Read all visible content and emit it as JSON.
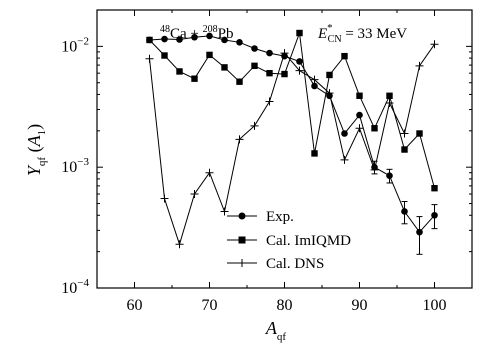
{
  "chart_data": {
    "type": "line",
    "title": "",
    "annotations": {
      "reaction": {
        "m1": "48",
        "e1": "Ca",
        "op": " + ",
        "m2": "208",
        "e2": "Pb"
      },
      "energy": {
        "sym": "E",
        "sup": "*",
        "sub": "CN",
        "rest": " = 33 MeV"
      }
    },
    "xlabel": {
      "main": "A",
      "sub": "qf"
    },
    "ylabel": {
      "main": "Y",
      "sub": "qf",
      "paren_open": " (",
      "var": "A",
      "var_sub": "1",
      "paren_close": ")"
    },
    "xlim": [
      55,
      105
    ],
    "ylim": [
      0.0001,
      0.02
    ],
    "yscale": "log",
    "grid": false,
    "legend_position": "bottom-left",
    "x_ticks": [
      60,
      70,
      80,
      90,
      100
    ],
    "y_ticks": [
      {
        "value": 0.01,
        "base": "10",
        "exp": "−2"
      },
      {
        "value": 0.001,
        "base": "10",
        "exp": "−3"
      },
      {
        "value": 0.0001,
        "base": "10",
        "exp": "−4"
      }
    ],
    "series": [
      {
        "name": "Exp.",
        "marker": "circle",
        "x": [
          62,
          64,
          66,
          68,
          70,
          72,
          74,
          76,
          78,
          80,
          82,
          84,
          86,
          88,
          90,
          92,
          94,
          96,
          98,
          100
        ],
        "y": [
          0.0113,
          0.0115,
          0.0114,
          0.0119,
          0.0122,
          0.0113,
          0.0108,
          0.0096,
          0.0088,
          0.0083,
          0.0075,
          0.0047,
          0.0039,
          0.0019,
          0.0027,
          0.001,
          0.00085,
          0.00043,
          0.00029,
          0.0004
        ],
        "yerr": [
          0,
          0,
          0,
          0,
          0,
          0,
          0,
          0,
          0,
          0,
          0,
          0,
          0,
          0,
          0,
          0.00012,
          0.00011,
          9e-05,
          0.0001,
          9e-05
        ]
      },
      {
        "name": "Cal. ImIQMD",
        "marker": "square",
        "x": [
          62,
          64,
          66,
          68,
          70,
          72,
          74,
          76,
          78,
          80,
          82,
          84,
          86,
          88,
          90,
          92,
          94,
          96,
          98,
          100
        ],
        "y": [
          0.0113,
          0.0084,
          0.0062,
          0.0054,
          0.0085,
          0.0067,
          0.0051,
          0.0069,
          0.006,
          0.0059,
          0.0129,
          0.0013,
          0.0058,
          0.0083,
          0.0039,
          0.0021,
          0.0039,
          0.0014,
          0.0019,
          0.00067
        ]
      },
      {
        "name": "Cal. DNS",
        "marker": "plus",
        "x": [
          62,
          64,
          66,
          68,
          70,
          72,
          74,
          76,
          78,
          80,
          82,
          84,
          86,
          88,
          90,
          92,
          94,
          96,
          98,
          100
        ],
        "y": [
          0.0079,
          0.00055,
          0.00023,
          0.0006,
          0.0009,
          0.00043,
          0.0017,
          0.0022,
          0.0035,
          0.0088,
          0.0063,
          0.0053,
          0.0041,
          0.00115,
          0.0021,
          0.00095,
          0.0034,
          0.0019,
          0.0069,
          0.0104
        ]
      }
    ]
  }
}
